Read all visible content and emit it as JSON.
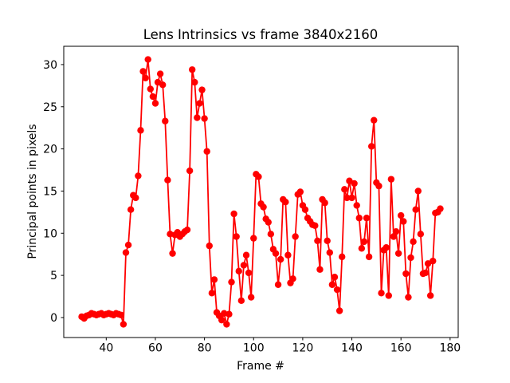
{
  "figure": {
    "background": "#ffffff"
  },
  "chart_data": {
    "type": "line",
    "title": "Lens Intrinsics vs frame 3840x2160",
    "xlabel": "Frame #",
    "ylabel": "Principal points in pixels",
    "line_color": "#ff0000",
    "marker": "circle",
    "grid": false,
    "legend": "none",
    "x_ticks": [
      40,
      60,
      80,
      100,
      120,
      140,
      160,
      180
    ],
    "y_ticks": [
      0,
      5,
      10,
      15,
      20,
      25,
      30
    ],
    "xlim": [
      22.7,
      183.3
    ],
    "ylim": [
      -2.37,
      32.17
    ],
    "series": [
      {
        "name": "principal-points",
        "x": [
          30,
          31,
          32,
          33,
          34,
          35,
          36,
          37,
          38,
          39,
          40,
          41,
          42,
          43,
          44,
          45,
          46,
          47,
          48,
          49,
          50,
          51,
          52,
          53,
          54,
          55,
          56,
          57,
          58,
          59,
          60,
          61,
          62,
          63,
          64,
          65,
          66,
          67,
          68,
          69,
          70,
          71,
          72,
          73,
          74,
          75,
          76,
          77,
          78,
          79,
          80,
          81,
          82,
          83,
          84,
          85,
          86,
          87,
          88,
          89,
          90,
          91,
          92,
          93,
          94,
          95,
          96,
          97,
          98,
          99,
          100,
          101,
          102,
          103,
          104,
          105,
          106,
          107,
          108,
          109,
          110,
          111,
          112,
          113,
          114,
          115,
          116,
          117,
          118,
          119,
          120,
          121,
          122,
          123,
          124,
          125,
          126,
          127,
          128,
          129,
          130,
          131,
          132,
          133,
          134,
          135,
          136,
          137,
          138,
          139,
          140,
          141,
          142,
          143,
          144,
          145,
          146,
          147,
          148,
          149,
          150,
          151,
          152,
          153,
          154,
          155,
          156,
          157,
          158,
          159,
          160,
          161,
          162,
          163,
          164,
          165,
          166,
          167,
          168,
          169,
          170,
          171,
          172,
          173,
          174,
          175,
          176
        ],
        "y": [
          0.1,
          -0.1,
          0.2,
          0.3,
          0.5,
          0.4,
          0.3,
          0.4,
          0.5,
          0.3,
          0.4,
          0.5,
          0.4,
          0.3,
          0.5,
          0.4,
          0.3,
          -0.8,
          7.7,
          8.6,
          12.8,
          14.5,
          14.2,
          16.8,
          22.2,
          29.2,
          28.4,
          30.6,
          27.1,
          26.2,
          25.4,
          27.9,
          28.9,
          27.6,
          23.3,
          16.3,
          9.9,
          7.6,
          9.8,
          10.1,
          9.6,
          9.9,
          10.2,
          10.4,
          17.4,
          29.4,
          27.9,
          23.7,
          25.4,
          27.0,
          23.6,
          19.7,
          8.5,
          2.9,
          4.5,
          0.6,
          0.2,
          -0.3,
          0.5,
          -0.8,
          0.4,
          4.2,
          12.3,
          9.6,
          5.5,
          2.0,
          6.2,
          7.4,
          5.3,
          2.4,
          9.4,
          17.0,
          16.7,
          13.5,
          13.1,
          11.7,
          11.3,
          9.9,
          8.1,
          7.6,
          3.9,
          6.9,
          14.0,
          13.7,
          7.4,
          4.1,
          4.6,
          9.6,
          14.6,
          14.9,
          13.3,
          12.8,
          11.8,
          11.4,
          11.0,
          10.9,
          9.1,
          5.7,
          14.0,
          13.6,
          9.1,
          7.7,
          3.9,
          4.8,
          3.3,
          0.8,
          7.2,
          15.2,
          14.2,
          16.2,
          14.2,
          15.9,
          13.3,
          11.8,
          8.2,
          9.0,
          11.8,
          7.2,
          20.3,
          23.4,
          16.0,
          15.6,
          2.9,
          8.0,
          8.3,
          2.6,
          16.4,
          9.6,
          10.2,
          7.6,
          12.1,
          11.4,
          5.2,
          2.4,
          7.1,
          9.0,
          12.8,
          15.0,
          9.9,
          5.2,
          5.3,
          6.4,
          2.6,
          6.7,
          12.4,
          12.5,
          12.9
        ]
      }
    ]
  }
}
